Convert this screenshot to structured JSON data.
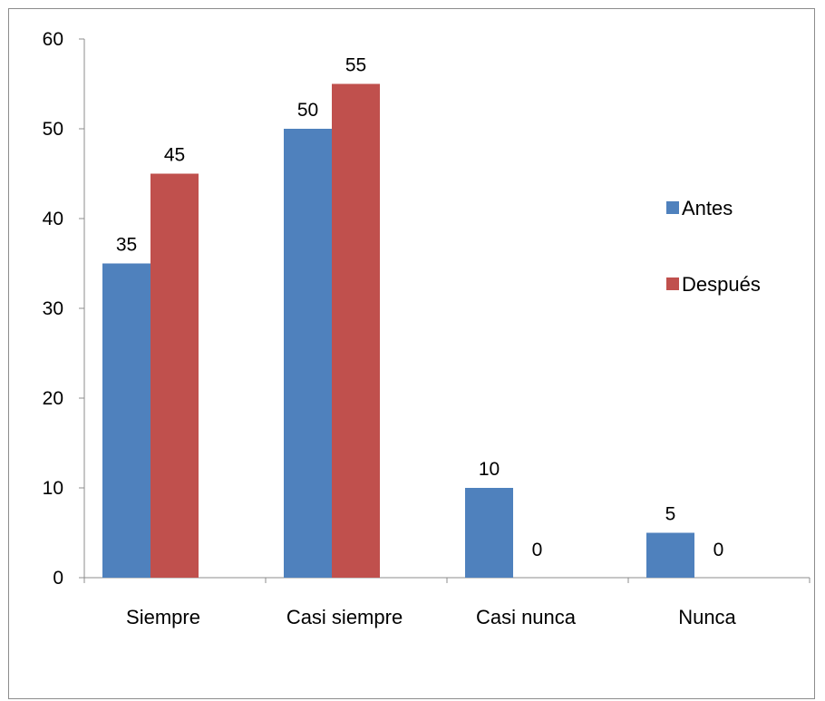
{
  "chart_data": {
    "type": "bar",
    "categories": [
      "Siempre",
      "Casi siempre",
      "Casi nunca",
      "Nunca"
    ],
    "series": [
      {
        "name": "Antes",
        "values": [
          35,
          50,
          10,
          5
        ],
        "color": "#4f81bd"
      },
      {
        "name": "Después",
        "values": [
          45,
          55,
          0,
          0
        ],
        "color": "#c0504d"
      }
    ],
    "ylim": [
      0,
      60
    ],
    "yticks": [
      0,
      10,
      20,
      30,
      40,
      50,
      60
    ],
    "grid": false,
    "data_labels": true,
    "legend_position": "right",
    "title": "",
    "xlabel": "",
    "ylabel": ""
  }
}
